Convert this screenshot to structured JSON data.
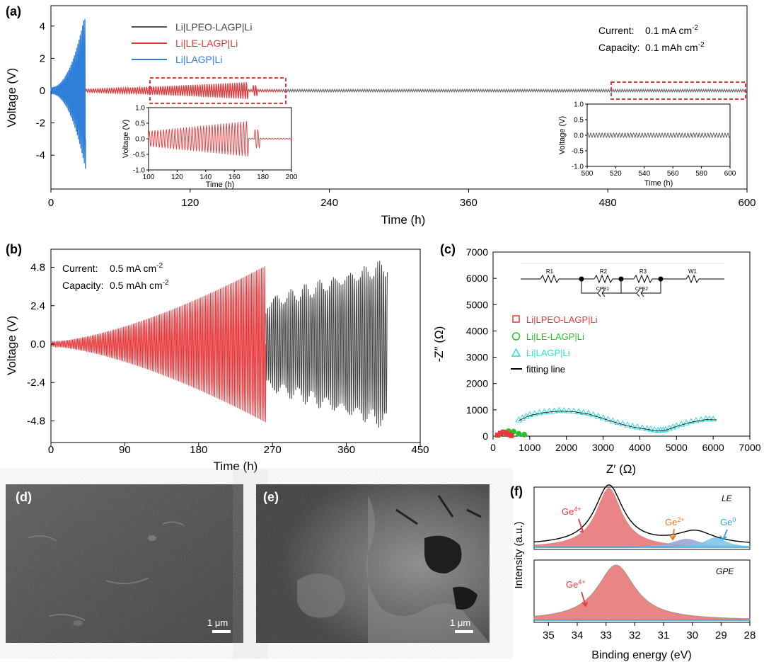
{
  "panel_a": {
    "label": "(a)",
    "xlabel": "Time (h)",
    "ylabel": "Voltage (V)",
    "xticks": [
      "0",
      "120",
      "240",
      "360",
      "480",
      "600"
    ],
    "yticks": [
      "4",
      "2",
      "0",
      "-2",
      "-4"
    ],
    "legend": [
      "Li|LPEO-LAGP|Li",
      "Li|LE-LAGP|Li",
      "Li|LAGP|Li"
    ],
    "current_label": "Current:",
    "current_value": "0.1 mA cm",
    "capacity_label": "Capacity:",
    "capacity_value": "0.1 mAh cm",
    "sup": "-2",
    "inset1": {
      "xlabel": "Time (h)",
      "ylabel": "Voltage (V)",
      "xticks": [
        "100",
        "120",
        "140",
        "160",
        "180",
        "200"
      ],
      "yticks": [
        "1.0",
        "0.5",
        "0.0",
        "-0.5",
        "-1.0"
      ]
    },
    "inset2": {
      "xlabel": "Time (h)",
      "ylabel": "Voltage (V)",
      "xticks": [
        "500",
        "520",
        "540",
        "560",
        "580",
        "600"
      ],
      "yticks": [
        "1.0",
        "0.5",
        "0.0",
        "-0.5",
        "-1.0"
      ]
    }
  },
  "panel_b": {
    "label": "(b)",
    "xlabel": "Time (h)",
    "ylabel": "Voltage (V)",
    "xticks": [
      "0",
      "90",
      "180",
      "270",
      "360",
      "450"
    ],
    "yticks": [
      "4.8",
      "2.4",
      "0.0",
      "-2.4",
      "-4.8"
    ],
    "current_label": "Current:",
    "current_value": "0.5 mA cm",
    "capacity_label": "Capacity:",
    "capacity_value": "0.5 mAh cm",
    "sup": "-2"
  },
  "panel_c": {
    "label": "(c)",
    "xlabel": "Z′ (Ω)",
    "ylabel": "-Z″ (Ω)",
    "xticks": [
      "0",
      "1000",
      "2000",
      "3000",
      "4000",
      "5000",
      "6000",
      "7000"
    ],
    "yticks": [
      "7000",
      "6000",
      "5000",
      "4000",
      "3000",
      "2000",
      "1000",
      "0"
    ],
    "legend": [
      "Li|LPEO-LAGP|Li",
      "Li|LE-LAGP|Li",
      "Li|LAGP|Li",
      "fitting line"
    ],
    "circuit": [
      "R1",
      "R2",
      "CPE1",
      "R3",
      "CPE2",
      "W1"
    ]
  },
  "panel_d": {
    "label": "(d)",
    "scale": "1 μm"
  },
  "panel_e": {
    "label": "(e)",
    "scale": "1 μm"
  },
  "panel_f": {
    "label": "(f)",
    "xlabel": "Binding energy (eV)",
    "ylabel": "Intensity (a.u.)",
    "xticks": [
      "35",
      "34",
      "33",
      "32",
      "31",
      "30",
      "29",
      "28"
    ],
    "top_tag": "LE",
    "bottom_tag": "GPE",
    "ge4": "Ge",
    "ge4_sup": "4+",
    "ge2": "Ge",
    "ge2_sup": "2+",
    "ge0": "Ge",
    "ge0_sup": "0",
    "ge4b": "Ge",
    "ge4b_sup": "4+"
  },
  "chart_data": [
    {
      "panel": "a",
      "type": "line",
      "xlabel": "Time (h)",
      "ylabel": "Voltage (V)",
      "xlim": [
        0,
        600
      ],
      "ylim": [
        -6,
        4.5
      ],
      "series": [
        {
          "name": "Li|LPEO-LAGP|Li",
          "color": "#555555",
          "t_range": [
            0,
            600
          ],
          "amplitude_v": 0.08
        },
        {
          "name": "Li|LE-LAGP|Li",
          "color": "#e8383b",
          "t_range": [
            0,
            198
          ],
          "amplitude_start_v": 0.05,
          "amplitude_end_v": 0.55
        },
        {
          "name": "Li|LAGP|Li",
          "color": "#2f7fd9",
          "t_range": [
            0,
            30
          ],
          "max_v": 4.4,
          "min_v": -5.2
        }
      ],
      "annotations": [
        "Current: 0.1 mA cm-2",
        "Capacity: 0.1 mAh cm-2"
      ]
    },
    {
      "panel": "b",
      "type": "line",
      "xlabel": "Time (h)",
      "ylabel": "Voltage (V)",
      "xlim": [
        0,
        450
      ],
      "ylim": [
        -6,
        6
      ],
      "series": [
        {
          "color": "#e8383b",
          "t_range": [
            0,
            262
          ],
          "amplitude_start_v": 0.15,
          "amplitude_end_v": 4.9
        },
        {
          "color": "#555555",
          "t_range": [
            262,
            410
          ],
          "amplitude_start_v": 2.6,
          "amplitude_end_v": 5.0
        }
      ]
    },
    {
      "panel": "c",
      "type": "scatter",
      "xlabel": "Z′ (Ω)",
      "ylabel": "-Z″ (Ω)",
      "xlim": [
        0,
        7000
      ],
      "ylim": [
        0,
        7000
      ],
      "series": [
        {
          "name": "Li|LPEO-LAGP|Li",
          "color": "#e8383b",
          "x": [
            120,
            200,
            280,
            360,
            440,
            500
          ],
          "y": [
            40,
            110,
            150,
            120,
            60,
            20
          ]
        },
        {
          "name": "Li|LE-LAGP|Li",
          "color": "#27c427",
          "x": [
            150,
            280,
            420,
            560,
            700,
            850
          ],
          "y": [
            40,
            150,
            190,
            170,
            90,
            60
          ]
        },
        {
          "name": "Li|LAGP|Li",
          "color": "#2fd9e0",
          "x": [
            700,
            1000,
            1400,
            1800,
            2200,
            2600,
            3000,
            3400,
            3800,
            4200,
            4500,
            4700,
            5000,
            5400,
            5800,
            6100
          ],
          "y": [
            620,
            820,
            930,
            980,
            960,
            870,
            700,
            520,
            380,
            290,
            220,
            250,
            400,
            560,
            660,
            650
          ]
        }
      ]
    },
    {
      "panel": "f",
      "type": "area",
      "xlabel": "Binding energy (eV)",
      "ylabel": "Intensity (a.u.)",
      "xlim": [
        35.5,
        28
      ],
      "series": [
        {
          "name": "LE Ge4+",
          "center_ev": 32.9
        },
        {
          "name": "LE Ge2+",
          "center_ev": 30.2
        },
        {
          "name": "LE Ge0",
          "center_ev": 29.2
        },
        {
          "name": "GPE Ge4+",
          "center_ev": 32.6
        }
      ]
    }
  ]
}
